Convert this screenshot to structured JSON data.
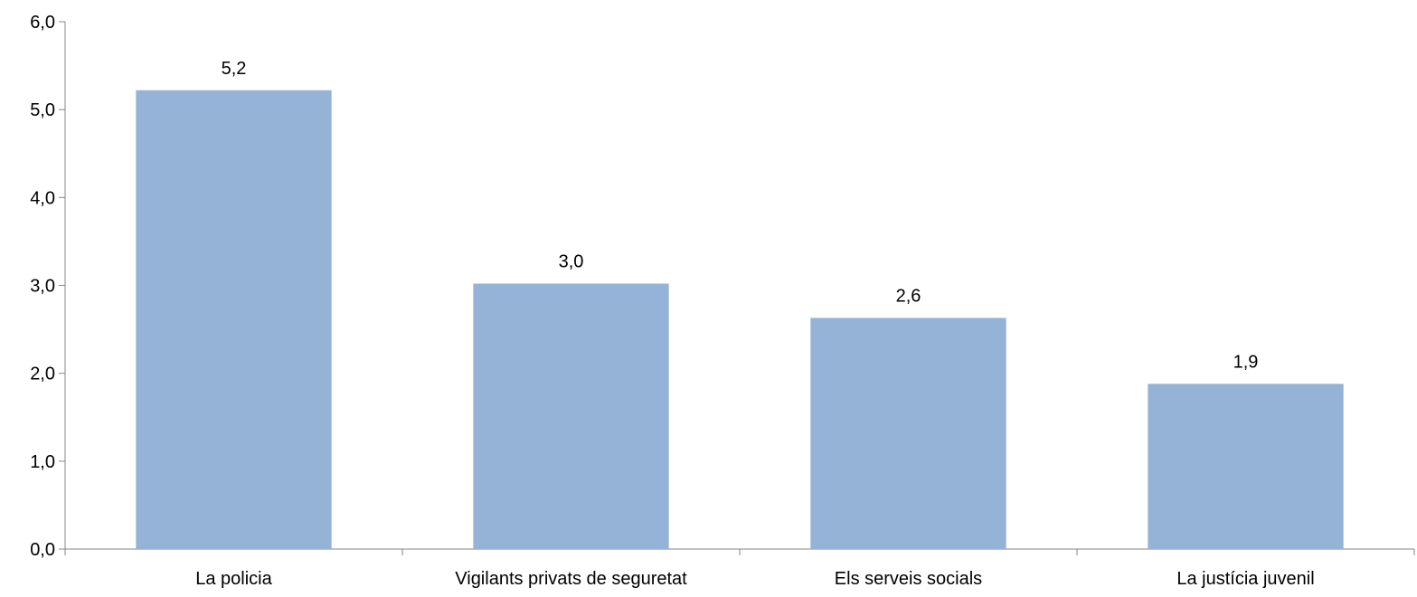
{
  "chart_data": {
    "type": "bar",
    "categories": [
      "La policia",
      "Vigilants privats de seguretat",
      "Els serveis socials",
      "La justícia juvenil"
    ],
    "values": [
      5.2,
      3.0,
      2.6,
      1.9
    ],
    "plotted_values": [
      5.22,
      3.02,
      2.63,
      1.88
    ],
    "data_labels": [
      "5,2",
      "3,0",
      "2,6",
      "1,9"
    ],
    "title": "",
    "xlabel": "",
    "ylabel": "",
    "ylim": [
      0,
      6
    ],
    "yticks": [
      0,
      1,
      2,
      3,
      4,
      5,
      6
    ],
    "ytick_labels": [
      "0,0",
      "1,0",
      "2,0",
      "3,0",
      "4,0",
      "5,0",
      "6,0"
    ],
    "grid": false,
    "legend": "none",
    "colors": {
      "bar": "#95B3D7",
      "axis": "#868686",
      "text": "#000000"
    }
  }
}
